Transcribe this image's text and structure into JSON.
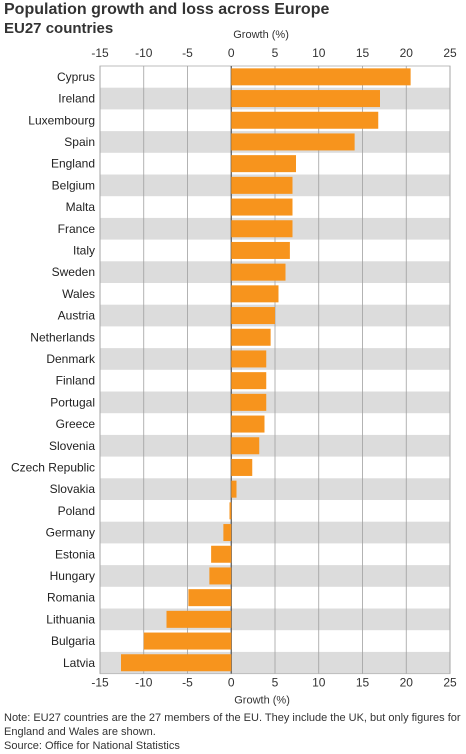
{
  "title": "Population growth and loss across Europe",
  "subtitle": "EU27 countries",
  "note": "Note: EU27 countries are the 27 members of the EU. They include the UK, but only figures for England and Wales are shown.",
  "source": "Source: Office for National Statistics",
  "colors": {
    "bar": "#f7941d",
    "stripe": "#dcdcdc",
    "grid": "#a0a0a0",
    "zero": "#555555"
  },
  "chart_data": {
    "type": "bar",
    "orientation": "horizontal",
    "xlabel": "Growth (%)",
    "xlim": [
      -15,
      25
    ],
    "xticks": [
      -15,
      -10,
      -5,
      0,
      5,
      10,
      15,
      20,
      25
    ],
    "axis_label_position": "top and bottom",
    "grid": true,
    "categories": [
      "Cyprus",
      "Ireland",
      "Luxembourg",
      "Spain",
      "England",
      "Belgium",
      "Malta",
      "France",
      "Italy",
      "Sweden",
      "Wales",
      "Austria",
      "Netherlands",
      "Denmark",
      "Finland",
      "Portugal",
      "Greece",
      "Slovenia",
      "Czech Republic",
      "Slovakia",
      "Poland",
      "Germany",
      "Estonia",
      "Hungary",
      "Romania",
      "Lithuania",
      "Bulgaria",
      "Latvia"
    ],
    "values": [
      20.5,
      17.0,
      16.8,
      14.1,
      7.4,
      7.0,
      7.0,
      7.0,
      6.7,
      6.2,
      5.4,
      5.0,
      4.5,
      4.0,
      4.0,
      4.0,
      3.8,
      3.2,
      2.4,
      0.6,
      -0.2,
      -0.9,
      -2.3,
      -2.5,
      -4.9,
      -7.4,
      -10.0,
      -12.6
    ]
  }
}
